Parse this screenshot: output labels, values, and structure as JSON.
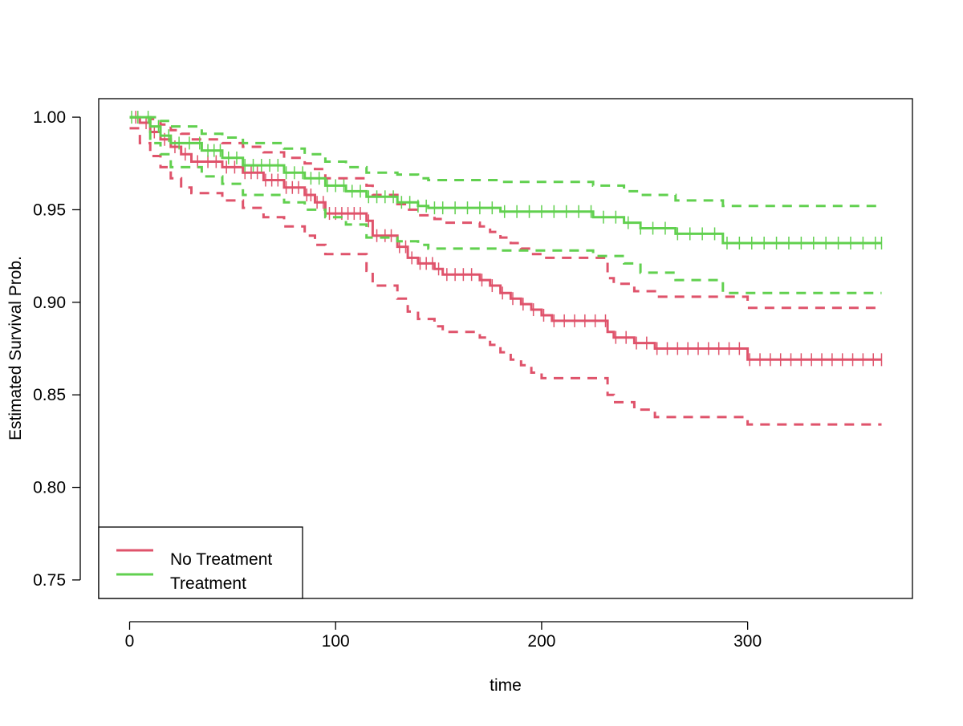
{
  "chart_data": {
    "type": "line",
    "title": "",
    "xlabel": "time",
    "ylabel": "Estimated Survival Prob.",
    "xlim": [
      -15,
      380
    ],
    "ylim": [
      0.74,
      1.01
    ],
    "xticks": [
      0,
      100,
      200,
      300
    ],
    "yticks": [
      0.75,
      0.8,
      0.85,
      0.9,
      0.95,
      1.0
    ],
    "xtick_labels": [
      "0",
      "100",
      "200",
      "300"
    ],
    "ytick_labels": [
      "0.75",
      "0.80",
      "0.85",
      "0.90",
      "0.95",
      "1.00"
    ],
    "grid": false,
    "legend": {
      "position": "bottom-left",
      "entries": [
        {
          "label": "No Treatment",
          "color": "#DF536B"
        },
        {
          "label": "Treatment",
          "color": "#61D04F"
        }
      ]
    },
    "series": [
      {
        "name": "No Treatment",
        "color": "#DF536B",
        "step": [
          [
            0,
            1.0
          ],
          [
            5,
            0.997
          ],
          [
            10,
            0.992
          ],
          [
            15,
            0.988
          ],
          [
            20,
            0.984
          ],
          [
            25,
            0.98
          ],
          [
            30,
            0.976
          ],
          [
            45,
            0.973
          ],
          [
            55,
            0.97
          ],
          [
            65,
            0.966
          ],
          [
            75,
            0.962
          ],
          [
            85,
            0.958
          ],
          [
            90,
            0.954
          ],
          [
            95,
            0.948
          ],
          [
            115,
            0.944
          ],
          [
            118,
            0.936
          ],
          [
            130,
            0.93
          ],
          [
            135,
            0.924
          ],
          [
            140,
            0.921
          ],
          [
            148,
            0.918
          ],
          [
            152,
            0.915
          ],
          [
            170,
            0.912
          ],
          [
            175,
            0.909
          ],
          [
            180,
            0.905
          ],
          [
            185,
            0.902
          ],
          [
            190,
            0.899
          ],
          [
            195,
            0.896
          ],
          [
            200,
            0.893
          ],
          [
            205,
            0.89
          ],
          [
            232,
            0.884
          ],
          [
            235,
            0.881
          ],
          [
            245,
            0.878
          ],
          [
            255,
            0.875
          ],
          [
            300,
            0.869
          ],
          [
            365,
            0.869
          ]
        ],
        "lower": [
          [
            0,
            0.994
          ],
          [
            5,
            0.986
          ],
          [
            10,
            0.979
          ],
          [
            15,
            0.973
          ],
          [
            20,
            0.967
          ],
          [
            25,
            0.962
          ],
          [
            30,
            0.959
          ],
          [
            45,
            0.955
          ],
          [
            55,
            0.951
          ],
          [
            65,
            0.946
          ],
          [
            75,
            0.941
          ],
          [
            85,
            0.936
          ],
          [
            90,
            0.931
          ],
          [
            95,
            0.926
          ],
          [
            115,
            0.917
          ],
          [
            118,
            0.909
          ],
          [
            130,
            0.902
          ],
          [
            135,
            0.895
          ],
          [
            140,
            0.891
          ],
          [
            148,
            0.887
          ],
          [
            152,
            0.884
          ],
          [
            170,
            0.881
          ],
          [
            175,
            0.877
          ],
          [
            180,
            0.873
          ],
          [
            185,
            0.869
          ],
          [
            190,
            0.866
          ],
          [
            195,
            0.862
          ],
          [
            200,
            0.859
          ],
          [
            232,
            0.85
          ],
          [
            235,
            0.846
          ],
          [
            245,
            0.842
          ],
          [
            255,
            0.838
          ],
          [
            300,
            0.834
          ],
          [
            365,
            0.834
          ]
        ],
        "upper": [
          [
            0,
            1.0
          ],
          [
            5,
            1.0
          ],
          [
            10,
            0.999
          ],
          [
            15,
            0.996
          ],
          [
            20,
            0.993
          ],
          [
            25,
            0.991
          ],
          [
            30,
            0.988
          ],
          [
            45,
            0.986
          ],
          [
            55,
            0.984
          ],
          [
            65,
            0.981
          ],
          [
            75,
            0.978
          ],
          [
            85,
            0.975
          ],
          [
            90,
            0.972
          ],
          [
            95,
            0.967
          ],
          [
            115,
            0.963
          ],
          [
            118,
            0.958
          ],
          [
            130,
            0.953
          ],
          [
            135,
            0.95
          ],
          [
            140,
            0.947
          ],
          [
            148,
            0.945
          ],
          [
            152,
            0.943
          ],
          [
            170,
            0.941
          ],
          [
            175,
            0.938
          ],
          [
            180,
            0.935
          ],
          [
            185,
            0.932
          ],
          [
            190,
            0.929
          ],
          [
            195,
            0.926
          ],
          [
            200,
            0.924
          ],
          [
            232,
            0.913
          ],
          [
            235,
            0.91
          ],
          [
            245,
            0.906
          ],
          [
            255,
            0.903
          ],
          [
            300,
            0.897
          ],
          [
            365,
            0.897
          ]
        ],
        "censor_times": [
          3,
          8,
          12,
          17,
          22,
          27,
          33,
          38,
          42,
          47,
          51,
          56,
          59,
          62,
          66,
          69,
          72,
          76,
          79,
          82,
          86,
          88,
          91,
          94,
          97,
          100,
          103,
          106,
          109,
          112,
          116,
          120,
          124,
          127,
          131,
          134,
          137,
          141,
          144,
          147,
          150,
          154,
          158,
          162,
          166,
          171,
          176,
          181,
          186,
          191,
          196,
          201,
          206,
          211,
          216,
          221,
          226,
          231,
          236,
          241,
          246,
          251,
          256,
          261,
          266,
          271,
          276,
          281,
          286,
          291,
          296,
          301,
          306,
          311,
          316,
          321,
          326,
          331,
          336,
          341,
          346,
          351,
          356,
          361,
          365
        ]
      },
      {
        "name": "Treatment",
        "color": "#61D04F",
        "step": [
          [
            0,
            1.0
          ],
          [
            10,
            0.995
          ],
          [
            15,
            0.99
          ],
          [
            20,
            0.986
          ],
          [
            35,
            0.982
          ],
          [
            45,
            0.978
          ],
          [
            55,
            0.974
          ],
          [
            75,
            0.97
          ],
          [
            85,
            0.967
          ],
          [
            95,
            0.963
          ],
          [
            105,
            0.96
          ],
          [
            115,
            0.957
          ],
          [
            130,
            0.954
          ],
          [
            140,
            0.952
          ],
          [
            145,
            0.951
          ],
          [
            180,
            0.949
          ],
          [
            225,
            0.946
          ],
          [
            240,
            0.943
          ],
          [
            248,
            0.94
          ],
          [
            265,
            0.937
          ],
          [
            288,
            0.932
          ],
          [
            365,
            0.932
          ]
        ],
        "lower": [
          [
            0,
            1.0
          ],
          [
            10,
            0.986
          ],
          [
            15,
            0.98
          ],
          [
            20,
            0.973
          ],
          [
            35,
            0.968
          ],
          [
            45,
            0.964
          ],
          [
            55,
            0.958
          ],
          [
            75,
            0.954
          ],
          [
            85,
            0.95
          ],
          [
            95,
            0.946
          ],
          [
            105,
            0.942
          ],
          [
            115,
            0.935
          ],
          [
            130,
            0.933
          ],
          [
            140,
            0.931
          ],
          [
            145,
            0.929
          ],
          [
            180,
            0.928
          ],
          [
            225,
            0.925
          ],
          [
            240,
            0.921
          ],
          [
            248,
            0.916
          ],
          [
            265,
            0.912
          ],
          [
            288,
            0.905
          ],
          [
            365,
            0.905
          ]
        ],
        "upper": [
          [
            0,
            1.0
          ],
          [
            10,
            1.0
          ],
          [
            15,
            0.998
          ],
          [
            20,
            0.995
          ],
          [
            35,
            0.991
          ],
          [
            45,
            0.989
          ],
          [
            55,
            0.986
          ],
          [
            75,
            0.983
          ],
          [
            85,
            0.98
          ],
          [
            95,
            0.976
          ],
          [
            105,
            0.973
          ],
          [
            115,
            0.97
          ],
          [
            130,
            0.969
          ],
          [
            140,
            0.967
          ],
          [
            145,
            0.966
          ],
          [
            180,
            0.965
          ],
          [
            225,
            0.963
          ],
          [
            240,
            0.96
          ],
          [
            248,
            0.958
          ],
          [
            265,
            0.955
          ],
          [
            288,
            0.952
          ],
          [
            365,
            0.952
          ]
        ],
        "censor_times": [
          1,
          4,
          9,
          14,
          19,
          24,
          29,
          34,
          38,
          41,
          44,
          48,
          52,
          56,
          60,
          64,
          68,
          72,
          76,
          80,
          84,
          88,
          92,
          96,
          100,
          104,
          108,
          112,
          116,
          120,
          124,
          128,
          132,
          136,
          140,
          144,
          148,
          152,
          158,
          164,
          170,
          176,
          182,
          188,
          194,
          200,
          206,
          212,
          218,
          224,
          230,
          236,
          242,
          248,
          254,
          260,
          266,
          272,
          278,
          284,
          290,
          296,
          302,
          308,
          314,
          320,
          326,
          332,
          338,
          344,
          350,
          356,
          362,
          365
        ]
      }
    ]
  }
}
